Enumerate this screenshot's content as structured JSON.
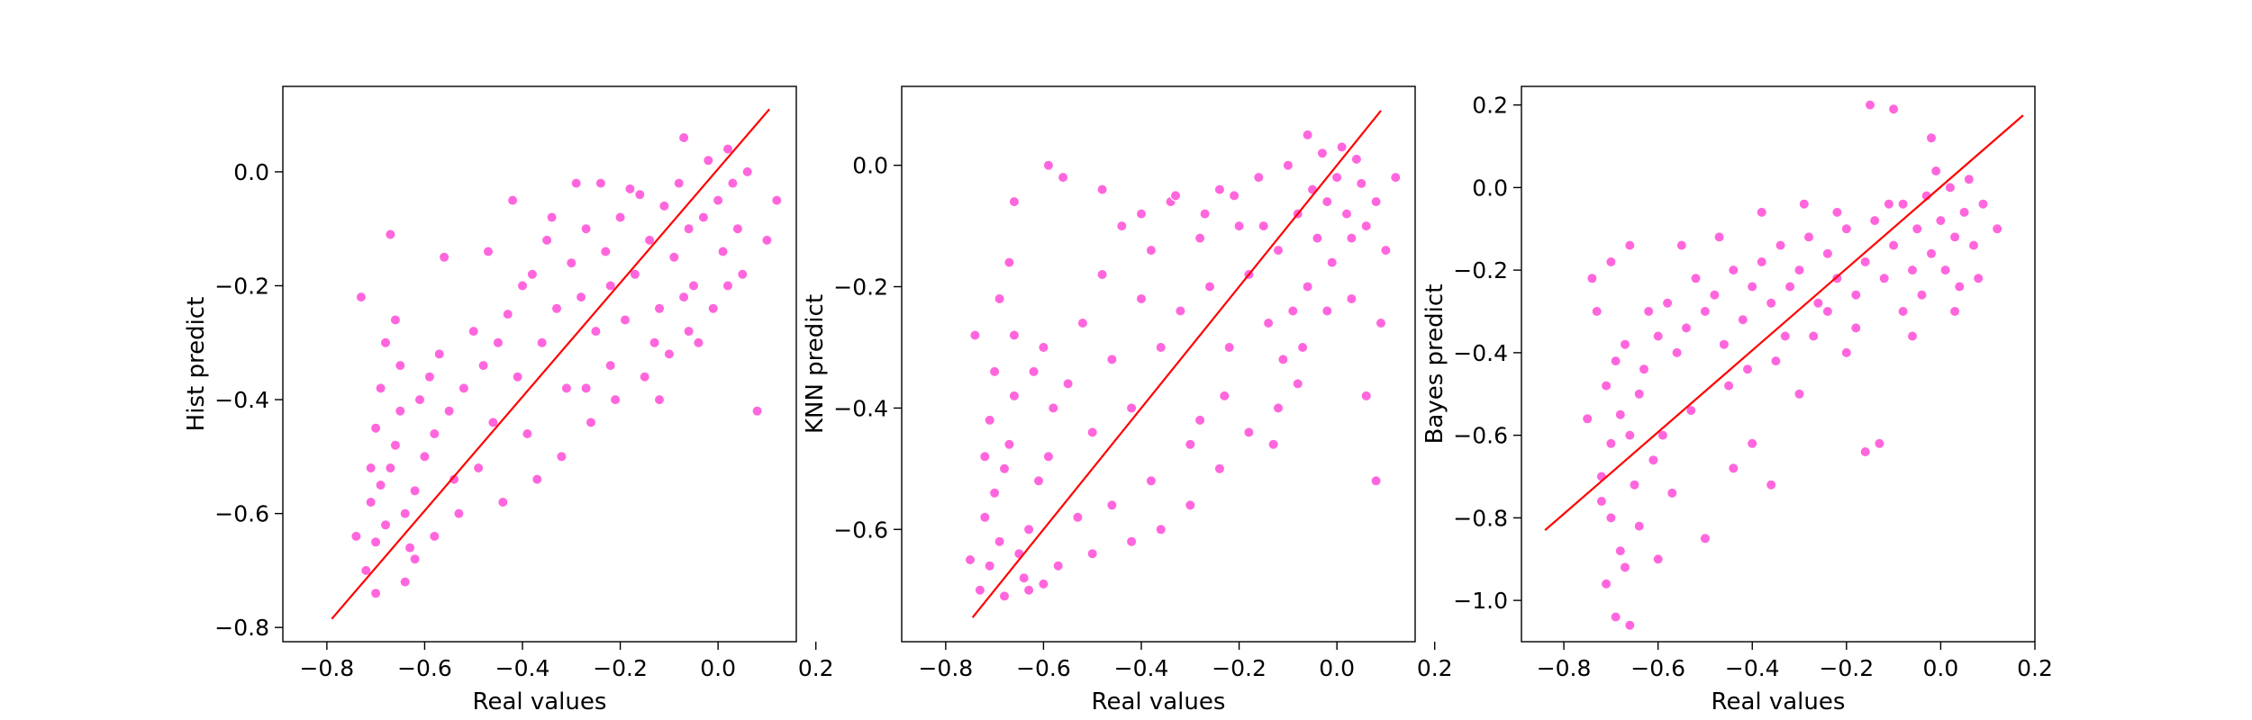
{
  "colors": {
    "point_fill": "#ff66dd",
    "point_edge": "#ffffff",
    "reference_line": "#ff0000",
    "axes": "#000000",
    "background": "#ffffff"
  },
  "chart_data": [
    {
      "type": "scatter",
      "xlabel": "Real values",
      "ylabel": "Hist predict",
      "xlim": [
        -0.89,
        0.16
      ],
      "ylim": [
        -0.825,
        0.15
      ],
      "xticks": [
        -0.8,
        -0.6,
        -0.4,
        -0.2,
        0.0,
        0.2
      ],
      "xtick_labels": [
        "−0.8",
        "−0.6",
        "−0.4",
        "−0.2",
        "0.0",
        "0.2"
      ],
      "yticks": [
        -0.8,
        -0.6,
        -0.4,
        -0.2,
        0.0
      ],
      "ytick_labels": [
        "−0.8",
        "−0.6",
        "−0.4",
        "−0.2",
        "0.0"
      ],
      "grid": false,
      "reference_line": {
        "x": [
          -0.79,
          0.105
        ],
        "y": [
          -0.785,
          0.11
        ]
      },
      "points": [
        [
          -0.72,
          -0.7
        ],
        [
          -0.7,
          -0.65
        ],
        [
          -0.68,
          -0.62
        ],
        [
          -0.71,
          -0.58
        ],
        [
          -0.69,
          -0.55
        ],
        [
          -0.67,
          -0.52
        ],
        [
          -0.66,
          -0.48
        ],
        [
          -0.7,
          -0.45
        ],
        [
          -0.65,
          -0.42
        ],
        [
          -0.64,
          -0.6
        ],
        [
          -0.62,
          -0.56
        ],
        [
          -0.63,
          -0.66
        ],
        [
          -0.6,
          -0.5
        ],
        [
          -0.58,
          -0.46
        ],
        [
          -0.61,
          -0.4
        ],
        [
          -0.59,
          -0.36
        ],
        [
          -0.73,
          -0.22
        ],
        [
          -0.68,
          -0.3
        ],
        [
          -0.66,
          -0.26
        ],
        [
          -0.57,
          -0.32
        ],
        [
          -0.55,
          -0.42
        ],
        [
          -0.52,
          -0.38
        ],
        [
          -0.5,
          -0.28
        ],
        [
          -0.48,
          -0.34
        ],
        [
          -0.46,
          -0.44
        ],
        [
          -0.45,
          -0.3
        ],
        [
          -0.43,
          -0.25
        ],
        [
          -0.41,
          -0.36
        ],
        [
          -0.4,
          -0.2
        ],
        [
          -0.38,
          -0.18
        ],
        [
          -0.36,
          -0.3
        ],
        [
          -0.35,
          -0.12
        ],
        [
          -0.33,
          -0.24
        ],
        [
          -0.31,
          -0.38
        ],
        [
          -0.3,
          -0.16
        ],
        [
          -0.28,
          -0.22
        ],
        [
          -0.27,
          -0.1
        ],
        [
          -0.25,
          -0.28
        ],
        [
          -0.23,
          -0.14
        ],
        [
          -0.22,
          -0.2
        ],
        [
          -0.2,
          -0.08
        ],
        [
          -0.19,
          -0.26
        ],
        [
          -0.17,
          -0.18
        ],
        [
          -0.16,
          -0.04
        ],
        [
          -0.14,
          -0.12
        ],
        [
          -0.12,
          -0.24
        ],
        [
          -0.11,
          -0.06
        ],
        [
          -0.09,
          -0.15
        ],
        [
          -0.08,
          -0.02
        ],
        [
          -0.06,
          -0.1
        ],
        [
          -0.05,
          -0.2
        ],
        [
          -0.03,
          -0.08
        ],
        [
          -0.02,
          0.02
        ],
        [
          0.0,
          -0.05
        ],
        [
          0.01,
          -0.14
        ],
        [
          0.02,
          0.04
        ],
        [
          0.03,
          -0.02
        ],
        [
          0.04,
          -0.1
        ],
        [
          0.05,
          -0.18
        ],
        [
          0.06,
          0.0
        ],
        [
          -0.07,
          0.06
        ],
        [
          -0.04,
          -0.3
        ],
        [
          -0.1,
          -0.32
        ],
        [
          -0.15,
          -0.36
        ],
        [
          -0.21,
          -0.4
        ],
        [
          -0.26,
          -0.44
        ],
        [
          -0.32,
          -0.5
        ],
        [
          -0.37,
          -0.54
        ],
        [
          -0.44,
          -0.58
        ],
        [
          -0.53,
          -0.6
        ],
        [
          -0.64,
          -0.72
        ],
        [
          -0.7,
          -0.74
        ],
        [
          -0.67,
          -0.11
        ],
        [
          -0.56,
          -0.15
        ],
        [
          -0.47,
          -0.14
        ],
        [
          -0.42,
          -0.05
        ],
        [
          -0.34,
          -0.08
        ],
        [
          -0.29,
          -0.02
        ],
        [
          -0.24,
          -0.02
        ],
        [
          -0.18,
          -0.03
        ],
        [
          -0.13,
          -0.3
        ],
        [
          0.08,
          -0.42
        ],
        [
          0.1,
          -0.12
        ],
        [
          0.12,
          -0.05
        ],
        [
          -0.01,
          -0.24
        ],
        [
          -0.06,
          -0.28
        ],
        [
          -0.39,
          -0.46
        ],
        [
          -0.49,
          -0.52
        ],
        [
          -0.54,
          -0.54
        ],
        [
          -0.58,
          -0.64
        ],
        [
          -0.62,
          -0.68
        ],
        [
          -0.74,
          -0.64
        ],
        [
          -0.71,
          -0.52
        ],
        [
          -0.69,
          -0.38
        ],
        [
          -0.65,
          -0.34
        ],
        [
          -0.22,
          -0.34
        ],
        [
          -0.27,
          -0.38
        ],
        [
          -0.12,
          -0.4
        ],
        [
          -0.07,
          -0.22
        ],
        [
          0.02,
          -0.2
        ]
      ]
    },
    {
      "type": "scatter",
      "xlabel": "Real values",
      "ylabel": "KNN predict",
      "xlim": [
        -0.89,
        0.16
      ],
      "ylim": [
        -0.785,
        0.13
      ],
      "xticks": [
        -0.8,
        -0.6,
        -0.4,
        -0.2,
        0.0,
        0.2
      ],
      "xtick_labels": [
        "−0.8",
        "−0.6",
        "−0.4",
        "−0.2",
        "0.0",
        "0.2"
      ],
      "yticks": [
        -0.6,
        -0.4,
        -0.2,
        0.0
      ],
      "ytick_labels": [
        "−0.6",
        "−0.4",
        "−0.2",
        "0.0"
      ],
      "grid": false,
      "reference_line": {
        "x": [
          -0.745,
          0.09
        ],
        "y": [
          -0.745,
          0.09
        ]
      },
      "points": [
        [
          -0.73,
          -0.7
        ],
        [
          -0.71,
          -0.66
        ],
        [
          -0.69,
          -0.62
        ],
        [
          -0.72,
          -0.58
        ],
        [
          -0.7,
          -0.54
        ],
        [
          -0.68,
          -0.5
        ],
        [
          -0.67,
          -0.46
        ],
        [
          -0.71,
          -0.42
        ],
        [
          -0.66,
          -0.38
        ],
        [
          -0.65,
          -0.64
        ],
        [
          -0.63,
          -0.6
        ],
        [
          -0.64,
          -0.68
        ],
        [
          -0.61,
          -0.52
        ],
        [
          -0.59,
          -0.48
        ],
        [
          -0.62,
          -0.34
        ],
        [
          -0.6,
          -0.3
        ],
        [
          -0.74,
          -0.28
        ],
        [
          -0.69,
          -0.22
        ],
        [
          -0.67,
          -0.16
        ],
        [
          -0.66,
          -0.06
        ],
        [
          -0.58,
          -0.4
        ],
        [
          -0.55,
          -0.36
        ],
        [
          -0.52,
          -0.26
        ],
        [
          -0.5,
          -0.44
        ],
        [
          -0.48,
          -0.18
        ],
        [
          -0.46,
          -0.32
        ],
        [
          -0.44,
          -0.1
        ],
        [
          -0.42,
          -0.4
        ],
        [
          -0.4,
          -0.22
        ],
        [
          -0.38,
          -0.14
        ],
        [
          -0.36,
          -0.3
        ],
        [
          -0.34,
          -0.06
        ],
        [
          -0.32,
          -0.24
        ],
        [
          -0.3,
          -0.46
        ],
        [
          -0.28,
          -0.12
        ],
        [
          -0.26,
          -0.2
        ],
        [
          -0.24,
          -0.04
        ],
        [
          -0.22,
          -0.3
        ],
        [
          -0.2,
          -0.1
        ],
        [
          -0.18,
          -0.18
        ],
        [
          -0.16,
          -0.02
        ],
        [
          -0.14,
          -0.26
        ],
        [
          -0.12,
          -0.14
        ],
        [
          -0.1,
          0.0
        ],
        [
          -0.08,
          -0.08
        ],
        [
          -0.06,
          -0.2
        ],
        [
          -0.05,
          -0.04
        ],
        [
          -0.04,
          -0.12
        ],
        [
          -0.03,
          0.02
        ],
        [
          -0.02,
          -0.06
        ],
        [
          -0.01,
          -0.16
        ],
        [
          0.0,
          -0.02
        ],
        [
          0.01,
          0.03
        ],
        [
          0.02,
          -0.08
        ],
        [
          0.03,
          -0.12
        ],
        [
          0.04,
          0.01
        ],
        [
          0.05,
          -0.03
        ],
        [
          0.06,
          -0.1
        ],
        [
          0.08,
          -0.06
        ],
        [
          0.1,
          -0.14
        ],
        [
          0.12,
          -0.02
        ],
        [
          -0.06,
          0.05
        ],
        [
          -0.08,
          -0.36
        ],
        [
          -0.12,
          -0.4
        ],
        [
          -0.18,
          -0.44
        ],
        [
          -0.24,
          -0.5
        ],
        [
          -0.3,
          -0.56
        ],
        [
          -0.36,
          -0.6
        ],
        [
          -0.42,
          -0.62
        ],
        [
          -0.5,
          -0.64
        ],
        [
          -0.6,
          -0.69
        ],
        [
          -0.68,
          -0.71
        ],
        [
          -0.59,
          0.0
        ],
        [
          -0.56,
          -0.02
        ],
        [
          -0.48,
          -0.04
        ],
        [
          -0.4,
          -0.08
        ],
        [
          -0.33,
          -0.05
        ],
        [
          -0.27,
          -0.08
        ],
        [
          -0.21,
          -0.05
        ],
        [
          -0.15,
          -0.1
        ],
        [
          -0.11,
          -0.32
        ],
        [
          0.06,
          -0.38
        ],
        [
          0.08,
          -0.52
        ],
        [
          0.09,
          -0.26
        ],
        [
          -0.02,
          -0.24
        ],
        [
          -0.07,
          -0.3
        ],
        [
          -0.38,
          -0.52
        ],
        [
          -0.46,
          -0.56
        ],
        [
          -0.53,
          -0.58
        ],
        [
          -0.57,
          -0.66
        ],
        [
          -0.63,
          -0.7
        ],
        [
          -0.75,
          -0.65
        ],
        [
          -0.72,
          -0.48
        ],
        [
          -0.7,
          -0.34
        ],
        [
          -0.66,
          -0.28
        ],
        [
          -0.23,
          -0.38
        ],
        [
          -0.28,
          -0.42
        ],
        [
          -0.13,
          -0.46
        ],
        [
          -0.09,
          -0.24
        ],
        [
          0.03,
          -0.22
        ]
      ]
    },
    {
      "type": "scatter",
      "xlabel": "Real values",
      "ylabel": "Bayes predict",
      "xlim": [
        -0.89,
        0.2
      ],
      "ylim": [
        -1.1,
        0.245
      ],
      "xticks": [
        -0.8,
        -0.6,
        -0.4,
        -0.2,
        0.0,
        0.2
      ],
      "xtick_labels": [
        "−0.8",
        "−0.6",
        "−0.4",
        "−0.2",
        "0.0",
        "0.2"
      ],
      "yticks": [
        -1.0,
        -0.8,
        -0.6,
        -0.4,
        -0.2,
        0.0,
        0.2
      ],
      "ytick_labels": [
        "−1.0",
        "−0.8",
        "−0.6",
        "−0.4",
        "−0.2",
        "0.0",
        "0.2"
      ],
      "grid": false,
      "reference_line": {
        "x": [
          -0.84,
          0.175
        ],
        "y": [
          -0.83,
          0.175
        ]
      },
      "points": [
        [
          -0.72,
          -0.7
        ],
        [
          -0.7,
          -0.62
        ],
        [
          -0.68,
          -0.55
        ],
        [
          -0.71,
          -0.48
        ],
        [
          -0.69,
          -0.42
        ],
        [
          -0.67,
          -0.38
        ],
        [
          -0.66,
          -0.6
        ],
        [
          -0.7,
          -0.8
        ],
        [
          -0.68,
          -0.88
        ],
        [
          -0.71,
          -0.96
        ],
        [
          -0.69,
          -1.04
        ],
        [
          -0.66,
          -1.06
        ],
        [
          -0.73,
          -0.3
        ],
        [
          -0.74,
          -0.22
        ],
        [
          -0.65,
          -0.72
        ],
        [
          -0.64,
          -0.5
        ],
        [
          -0.63,
          -0.44
        ],
        [
          -0.62,
          -0.3
        ],
        [
          -0.6,
          -0.36
        ],
        [
          -0.58,
          -0.28
        ],
        [
          -0.56,
          -0.4
        ],
        [
          -0.54,
          -0.34
        ],
        [
          -0.52,
          -0.22
        ],
        [
          -0.5,
          -0.3
        ],
        [
          -0.48,
          -0.26
        ],
        [
          -0.46,
          -0.38
        ],
        [
          -0.44,
          -0.2
        ],
        [
          -0.42,
          -0.32
        ],
        [
          -0.4,
          -0.24
        ],
        [
          -0.38,
          -0.18
        ],
        [
          -0.36,
          -0.28
        ],
        [
          -0.34,
          -0.14
        ],
        [
          -0.32,
          -0.24
        ],
        [
          -0.3,
          -0.2
        ],
        [
          -0.28,
          -0.12
        ],
        [
          -0.26,
          -0.28
        ],
        [
          -0.24,
          -0.16
        ],
        [
          -0.22,
          -0.22
        ],
        [
          -0.2,
          -0.1
        ],
        [
          -0.18,
          -0.26
        ],
        [
          -0.16,
          -0.18
        ],
        [
          -0.14,
          -0.08
        ],
        [
          -0.12,
          -0.22
        ],
        [
          -0.1,
          -0.14
        ],
        [
          -0.08,
          -0.04
        ],
        [
          -0.06,
          -0.2
        ],
        [
          -0.05,
          -0.1
        ],
        [
          -0.04,
          -0.26
        ],
        [
          -0.03,
          -0.02
        ],
        [
          -0.02,
          -0.16
        ],
        [
          -0.01,
          0.04
        ],
        [
          0.0,
          -0.08
        ],
        [
          0.01,
          -0.2
        ],
        [
          0.02,
          0.0
        ],
        [
          0.03,
          -0.12
        ],
        [
          0.04,
          -0.24
        ],
        [
          0.05,
          -0.06
        ],
        [
          0.07,
          -0.14
        ],
        [
          0.09,
          -0.04
        ],
        [
          0.12,
          -0.1
        ],
        [
          -0.15,
          0.2
        ],
        [
          -0.1,
          0.19
        ],
        [
          -0.02,
          0.12
        ],
        [
          -0.3,
          -0.5
        ],
        [
          -0.4,
          -0.62
        ],
        [
          -0.44,
          -0.68
        ],
        [
          -0.36,
          -0.72
        ],
        [
          -0.5,
          -0.85
        ],
        [
          -0.6,
          -0.9
        ],
        [
          -0.2,
          -0.4
        ],
        [
          -0.16,
          -0.64
        ],
        [
          -0.13,
          -0.62
        ],
        [
          -0.55,
          -0.14
        ],
        [
          -0.47,
          -0.12
        ],
        [
          -0.38,
          -0.06
        ],
        [
          -0.29,
          -0.04
        ],
        [
          -0.22,
          -0.06
        ],
        [
          -0.11,
          -0.04
        ],
        [
          0.06,
          0.02
        ],
        [
          -0.64,
          -0.82
        ],
        [
          -0.67,
          -0.92
        ],
        [
          -0.72,
          -0.76
        ],
        [
          -0.59,
          -0.6
        ],
        [
          -0.53,
          -0.54
        ],
        [
          -0.45,
          -0.48
        ],
        [
          -0.35,
          -0.42
        ],
        [
          -0.27,
          -0.36
        ],
        [
          -0.18,
          -0.34
        ],
        [
          -0.08,
          -0.3
        ],
        [
          0.03,
          -0.3
        ],
        [
          -0.75,
          -0.56
        ],
        [
          -0.7,
          -0.18
        ],
        [
          -0.66,
          -0.14
        ],
        [
          -0.61,
          -0.66
        ],
        [
          -0.57,
          -0.74
        ],
        [
          -0.24,
          -0.3
        ],
        [
          -0.33,
          -0.36
        ],
        [
          -0.41,
          -0.44
        ],
        [
          -0.06,
          -0.36
        ],
        [
          0.08,
          -0.22
        ]
      ]
    }
  ]
}
